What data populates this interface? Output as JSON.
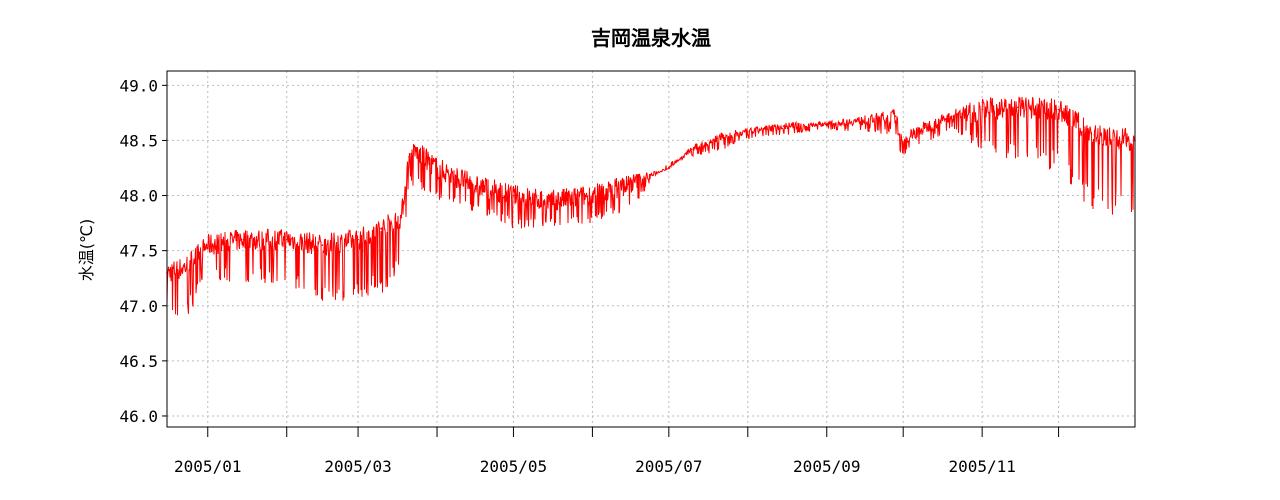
{
  "chart_data": {
    "type": "line",
    "title": "吉岡温泉水温",
    "ylabel": "水温(℃)",
    "xlabel": "",
    "xlim": [
      "2004-12-16",
      "2005-12-31"
    ],
    "ylim": [
      45.9,
      49.13
    ],
    "yticks": [
      "46.0",
      "46.5",
      "47.0",
      "47.5",
      "48.0",
      "48.5",
      "49.0"
    ],
    "xticks": [
      "2005/01",
      "2005/02",
      "2005/03",
      "2005/04",
      "2005/05",
      "2005/06",
      "2005/07",
      "2005/08",
      "2005/09",
      "2005/10",
      "2005/11",
      "2005/12"
    ],
    "xtick_labels": [
      "2005/01",
      "",
      "2005/03",
      "",
      "2005/05",
      "",
      "2005/07",
      "",
      "2005/09",
      "",
      "2005/11",
      ""
    ],
    "grid": true,
    "series_color": "#ff0000",
    "series": [
      {
        "points": [
          [
            "2004-12-16",
            47.3
          ],
          [
            "2004-12-23",
            47.35
          ],
          [
            "2005-01-01",
            47.55
          ],
          [
            "2005-01-15",
            47.6
          ],
          [
            "2005-02-01",
            47.6
          ],
          [
            "2005-02-15",
            47.55
          ],
          [
            "2005-03-01",
            47.6
          ],
          [
            "2005-03-10",
            47.7
          ],
          [
            "2005-03-18",
            47.8
          ],
          [
            "2005-03-21",
            48.35
          ],
          [
            "2005-03-24",
            48.4
          ],
          [
            "2005-04-01",
            48.25
          ],
          [
            "2005-04-15",
            48.1
          ],
          [
            "2005-05-01",
            48.0
          ],
          [
            "2005-05-15",
            47.95
          ],
          [
            "2005-06-01",
            48.0
          ],
          [
            "2005-06-15",
            48.1
          ],
          [
            "2005-07-01",
            48.25
          ],
          [
            "2005-07-10",
            48.42
          ],
          [
            "2005-07-20",
            48.52
          ],
          [
            "2005-08-01",
            48.58
          ],
          [
            "2005-08-15",
            48.63
          ],
          [
            "2005-09-01",
            48.65
          ],
          [
            "2005-09-15",
            48.68
          ],
          [
            "2005-09-28",
            48.72
          ],
          [
            "2005-09-30",
            48.5
          ],
          [
            "2005-10-10",
            48.62
          ],
          [
            "2005-10-20",
            48.72
          ],
          [
            "2005-11-01",
            48.78
          ],
          [
            "2005-11-15",
            48.8
          ],
          [
            "2005-12-01",
            48.78
          ],
          [
            "2005-12-15",
            48.55
          ],
          [
            "2005-12-31",
            48.5
          ]
        ],
        "dip_envelope": [
          [
            "2004-12-16",
            46.9
          ],
          [
            "2004-12-23",
            46.85
          ],
          [
            "2005-01-01",
            47.25
          ],
          [
            "2005-01-15",
            47.2
          ],
          [
            "2005-02-01",
            47.2
          ],
          [
            "2005-02-15",
            47.0
          ],
          [
            "2005-03-01",
            47.05
          ],
          [
            "2005-03-10",
            47.1
          ],
          [
            "2005-03-18",
            47.3
          ],
          [
            "2005-03-21",
            48.1
          ],
          [
            "2005-04-01",
            47.95
          ],
          [
            "2005-04-15",
            47.85
          ],
          [
            "2005-05-01",
            47.7
          ],
          [
            "2005-05-15",
            47.7
          ],
          [
            "2005-06-01",
            47.75
          ],
          [
            "2005-06-15",
            47.85
          ],
          [
            "2005-07-01",
            48.3
          ],
          [
            "2005-07-20",
            48.4
          ],
          [
            "2005-08-01",
            48.5
          ],
          [
            "2005-09-01",
            48.6
          ],
          [
            "2005-09-28",
            48.55
          ],
          [
            "2005-09-30",
            48.35
          ],
          [
            "2005-10-20",
            48.6
          ],
          [
            "2005-11-01",
            48.4
          ],
          [
            "2005-11-15",
            48.3
          ],
          [
            "2005-12-01",
            48.2
          ],
          [
            "2005-12-15",
            47.8
          ],
          [
            "2005-12-31",
            47.85
          ]
        ]
      }
    ]
  }
}
